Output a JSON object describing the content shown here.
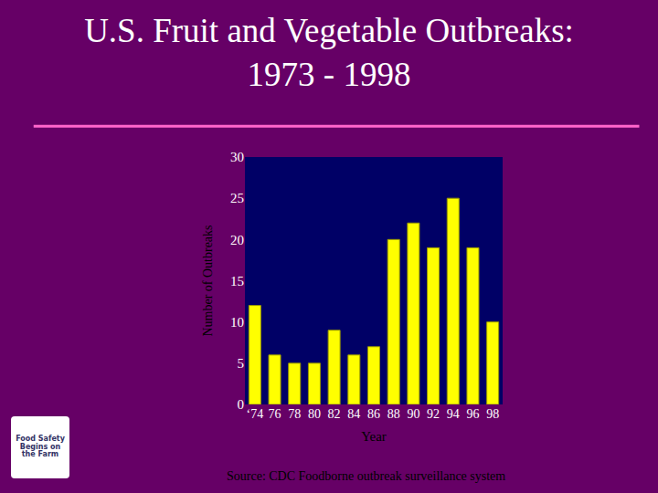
{
  "chart_data": {
    "type": "bar",
    "title": "U.S. Fruit and Vegetable Outbreaks: 1973 - 1998",
    "categories": [
      "‘74",
      "76",
      "78",
      "80",
      "82",
      "84",
      "86",
      "88",
      "90",
      "92",
      "94",
      "96",
      "98"
    ],
    "values": [
      12,
      6,
      5,
      5,
      9,
      6,
      7,
      20,
      22,
      19,
      25,
      19,
      10
    ],
    "color": "#ffff00",
    "ylim": [
      0,
      30
    ],
    "yticks": [
      0,
      5,
      10,
      15,
      20,
      25,
      30
    ],
    "grid": false,
    "x_label": "Year",
    "y_label": "Number of Outbreaks",
    "source": "Source: CDC Foodborne outbreak surveillance system",
    "logo_text": "Food Safety Begins on the Farm"
  }
}
